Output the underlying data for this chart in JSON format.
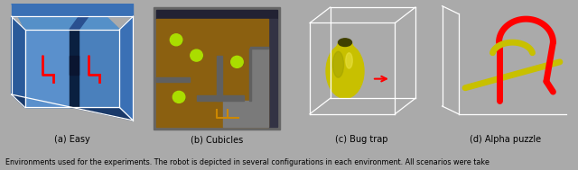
{
  "images": [
    {
      "label": "(a) Easy"
    },
    {
      "label": "(b) Cubicles"
    },
    {
      "label": "(c) Bug trap"
    },
    {
      "label": "(d) Alpha puzzle"
    }
  ],
  "caption": "Environments used for the experiments. The robot is depicted in several configurations in each environment. All scenarios were take",
  "label_fontsize": 7,
  "caption_fontsize": 5.8,
  "figure_width": 6.4,
  "figure_height": 1.89,
  "dpi": 100,
  "outer_bg": "#aaaaaa",
  "img_bg_easy": "#7aa8d8",
  "img_bg_cubicles": "#8b7355",
  "img_bg_bugtrap": "#909090",
  "img_bg_alpha": "#808080"
}
